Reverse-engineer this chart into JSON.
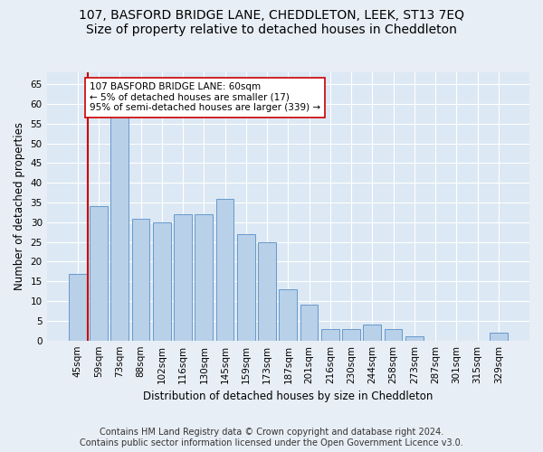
{
  "title": "107, BASFORD BRIDGE LANE, CHEDDLETON, LEEK, ST13 7EQ",
  "subtitle": "Size of property relative to detached houses in Cheddleton",
  "xlabel": "Distribution of detached houses by size in Cheddleton",
  "ylabel": "Number of detached properties",
  "categories": [
    "45sqm",
    "59sqm",
    "73sqm",
    "88sqm",
    "102sqm",
    "116sqm",
    "130sqm",
    "145sqm",
    "159sqm",
    "173sqm",
    "187sqm",
    "201sqm",
    "216sqm",
    "230sqm",
    "244sqm",
    "258sqm",
    "273sqm",
    "287sqm",
    "301sqm",
    "315sqm",
    "329sqm"
  ],
  "values": [
    17,
    34,
    57,
    31,
    30,
    32,
    32,
    36,
    27,
    25,
    13,
    9,
    3,
    3,
    4,
    3,
    1,
    0,
    0,
    0,
    2
  ],
  "bar_color": "#b8d0e8",
  "bar_edge_color": "#6699cc",
  "property_line_x": 0.5,
  "property_line_color": "#cc0000",
  "annotation_text": "107 BASFORD BRIDGE LANE: 60sqm\n← 5% of detached houses are smaller (17)\n95% of semi-detached houses are larger (339) →",
  "annotation_box_color": "#ffffff",
  "annotation_box_edge_color": "#cc0000",
  "ylim": [
    0,
    68
  ],
  "yticks": [
    0,
    5,
    10,
    15,
    20,
    25,
    30,
    35,
    40,
    45,
    50,
    55,
    60,
    65
  ],
  "footnote1": "Contains HM Land Registry data © Crown copyright and database right 2024.",
  "footnote2": "Contains public sector information licensed under the Open Government Licence v3.0.",
  "bg_color": "#e8eef5",
  "plot_bg_color": "#dce8f4",
  "grid_color": "#ffffff",
  "title_fontsize": 10,
  "axis_label_fontsize": 8.5,
  "tick_fontsize": 7.5,
  "annotation_fontsize": 7.5,
  "footnote_fontsize": 7
}
